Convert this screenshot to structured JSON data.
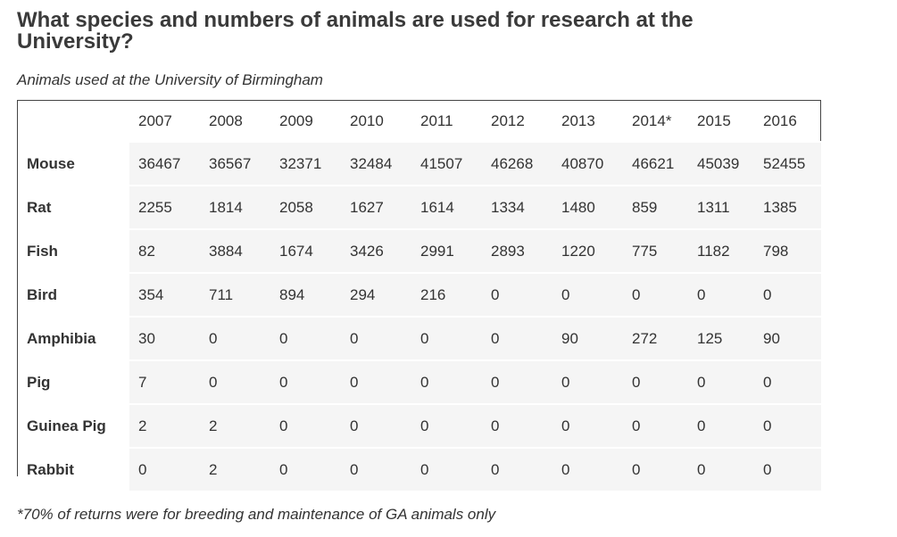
{
  "heading": "What species and numbers of animals are used for research at the University?",
  "caption": "Animals used at the University of Birmingham",
  "table": {
    "corner": "",
    "years": [
      "2007",
      "2008",
      "2009",
      "2010",
      "2011",
      "2012",
      "2013",
      "2014*",
      "2015",
      "2016"
    ],
    "rows": [
      {
        "species": "Mouse",
        "values": [
          "36467",
          "36567",
          "32371",
          "32484",
          "41507",
          "46268",
          "40870",
          "46621",
          "45039",
          "52455"
        ]
      },
      {
        "species": "Rat",
        "values": [
          "2255",
          "1814",
          "2058",
          "1627",
          "1614",
          "1334",
          "1480",
          "859",
          "1311",
          "1385"
        ]
      },
      {
        "species": "Fish",
        "values": [
          "82",
          "3884",
          "1674",
          "3426",
          "2991",
          "2893",
          "1220",
          "775",
          "1182",
          "798"
        ]
      },
      {
        "species": "Bird",
        "values": [
          "354",
          "711",
          "894",
          "294",
          "216",
          "0",
          "0",
          "0",
          "0",
          "0"
        ]
      },
      {
        "species": "Amphibia",
        "values": [
          "30",
          "0",
          "0",
          "0",
          "0",
          "0",
          "90",
          "272",
          "125",
          "90"
        ]
      },
      {
        "species": "Pig",
        "values": [
          "7",
          "0",
          "0",
          "0",
          "0",
          "0",
          "0",
          "0",
          "0",
          "0"
        ]
      },
      {
        "species": "Guinea Pig",
        "values": [
          "2",
          "2",
          "0",
          "0",
          "0",
          "0",
          "0",
          "0",
          "0",
          "0"
        ]
      },
      {
        "species": "Rabbit",
        "values": [
          "0",
          "2",
          "0",
          "0",
          "0",
          "0",
          "0",
          "0",
          "0",
          "0"
        ]
      }
    ]
  },
  "footnote": "*70% of returns were for breeding and maintenance of GA animals only"
}
